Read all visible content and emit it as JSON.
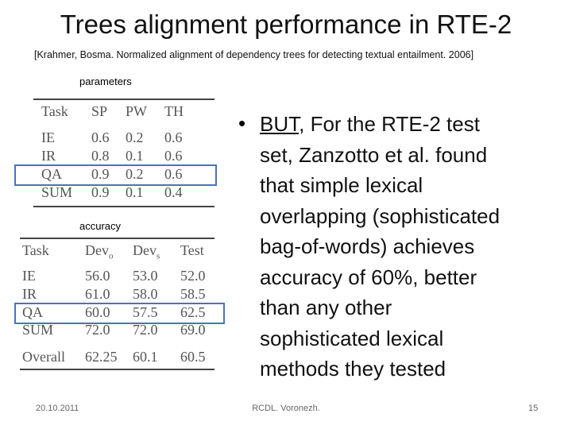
{
  "header": {
    "title": "Trees alignment performance in RTE-2",
    "citation": "[Krahmer, Bosma. Normalized alignment of dependency trees for detecting textual entailment. 2006]"
  },
  "params_table": {
    "label": "parameters",
    "columns": [
      "Task",
      "SP",
      "PW",
      "TH"
    ],
    "rows": [
      [
        "IE",
        "0.6",
        "0.2",
        "0.6"
      ],
      [
        "IR",
        "0.8",
        "0.1",
        "0.6"
      ],
      [
        "QA",
        "0.9",
        "0.2",
        "0.6"
      ],
      [
        "SUM",
        "0.9",
        "0.1",
        "0.4"
      ]
    ]
  },
  "accuracy_table": {
    "label": "accuracy",
    "columns": [
      {
        "text": "Task"
      },
      {
        "text": "Dev",
        "sub": "o"
      },
      {
        "text": "Dev",
        "sub": "s"
      },
      {
        "text": "Test"
      }
    ],
    "rows": [
      [
        "IE",
        "56.0",
        "53.0",
        "52.0"
      ],
      [
        "IR",
        "61.0",
        "58.0",
        "58.5"
      ],
      [
        "QA",
        "60.0",
        "57.5",
        "62.5"
      ],
      [
        "SUM",
        "72.0",
        "72.0",
        "69.0"
      ],
      [
        "Overall",
        "62.25",
        "60.1",
        "60.5"
      ]
    ]
  },
  "bullet": {
    "underlined": "BUT",
    "lines": [
      ", For the RTE-2 test",
      "set, Zanzotto et al. found",
      "that simple lexical",
      "overlapping (sophisticated",
      "bag-of-words) achieves",
      "accuracy of 60%, better",
      "than any other",
      "sophisticated lexical",
      "methods they tested"
    ]
  },
  "footer": {
    "date": "20.10.2011",
    "venue": "RCDL. Voronezh.",
    "page": "15"
  }
}
